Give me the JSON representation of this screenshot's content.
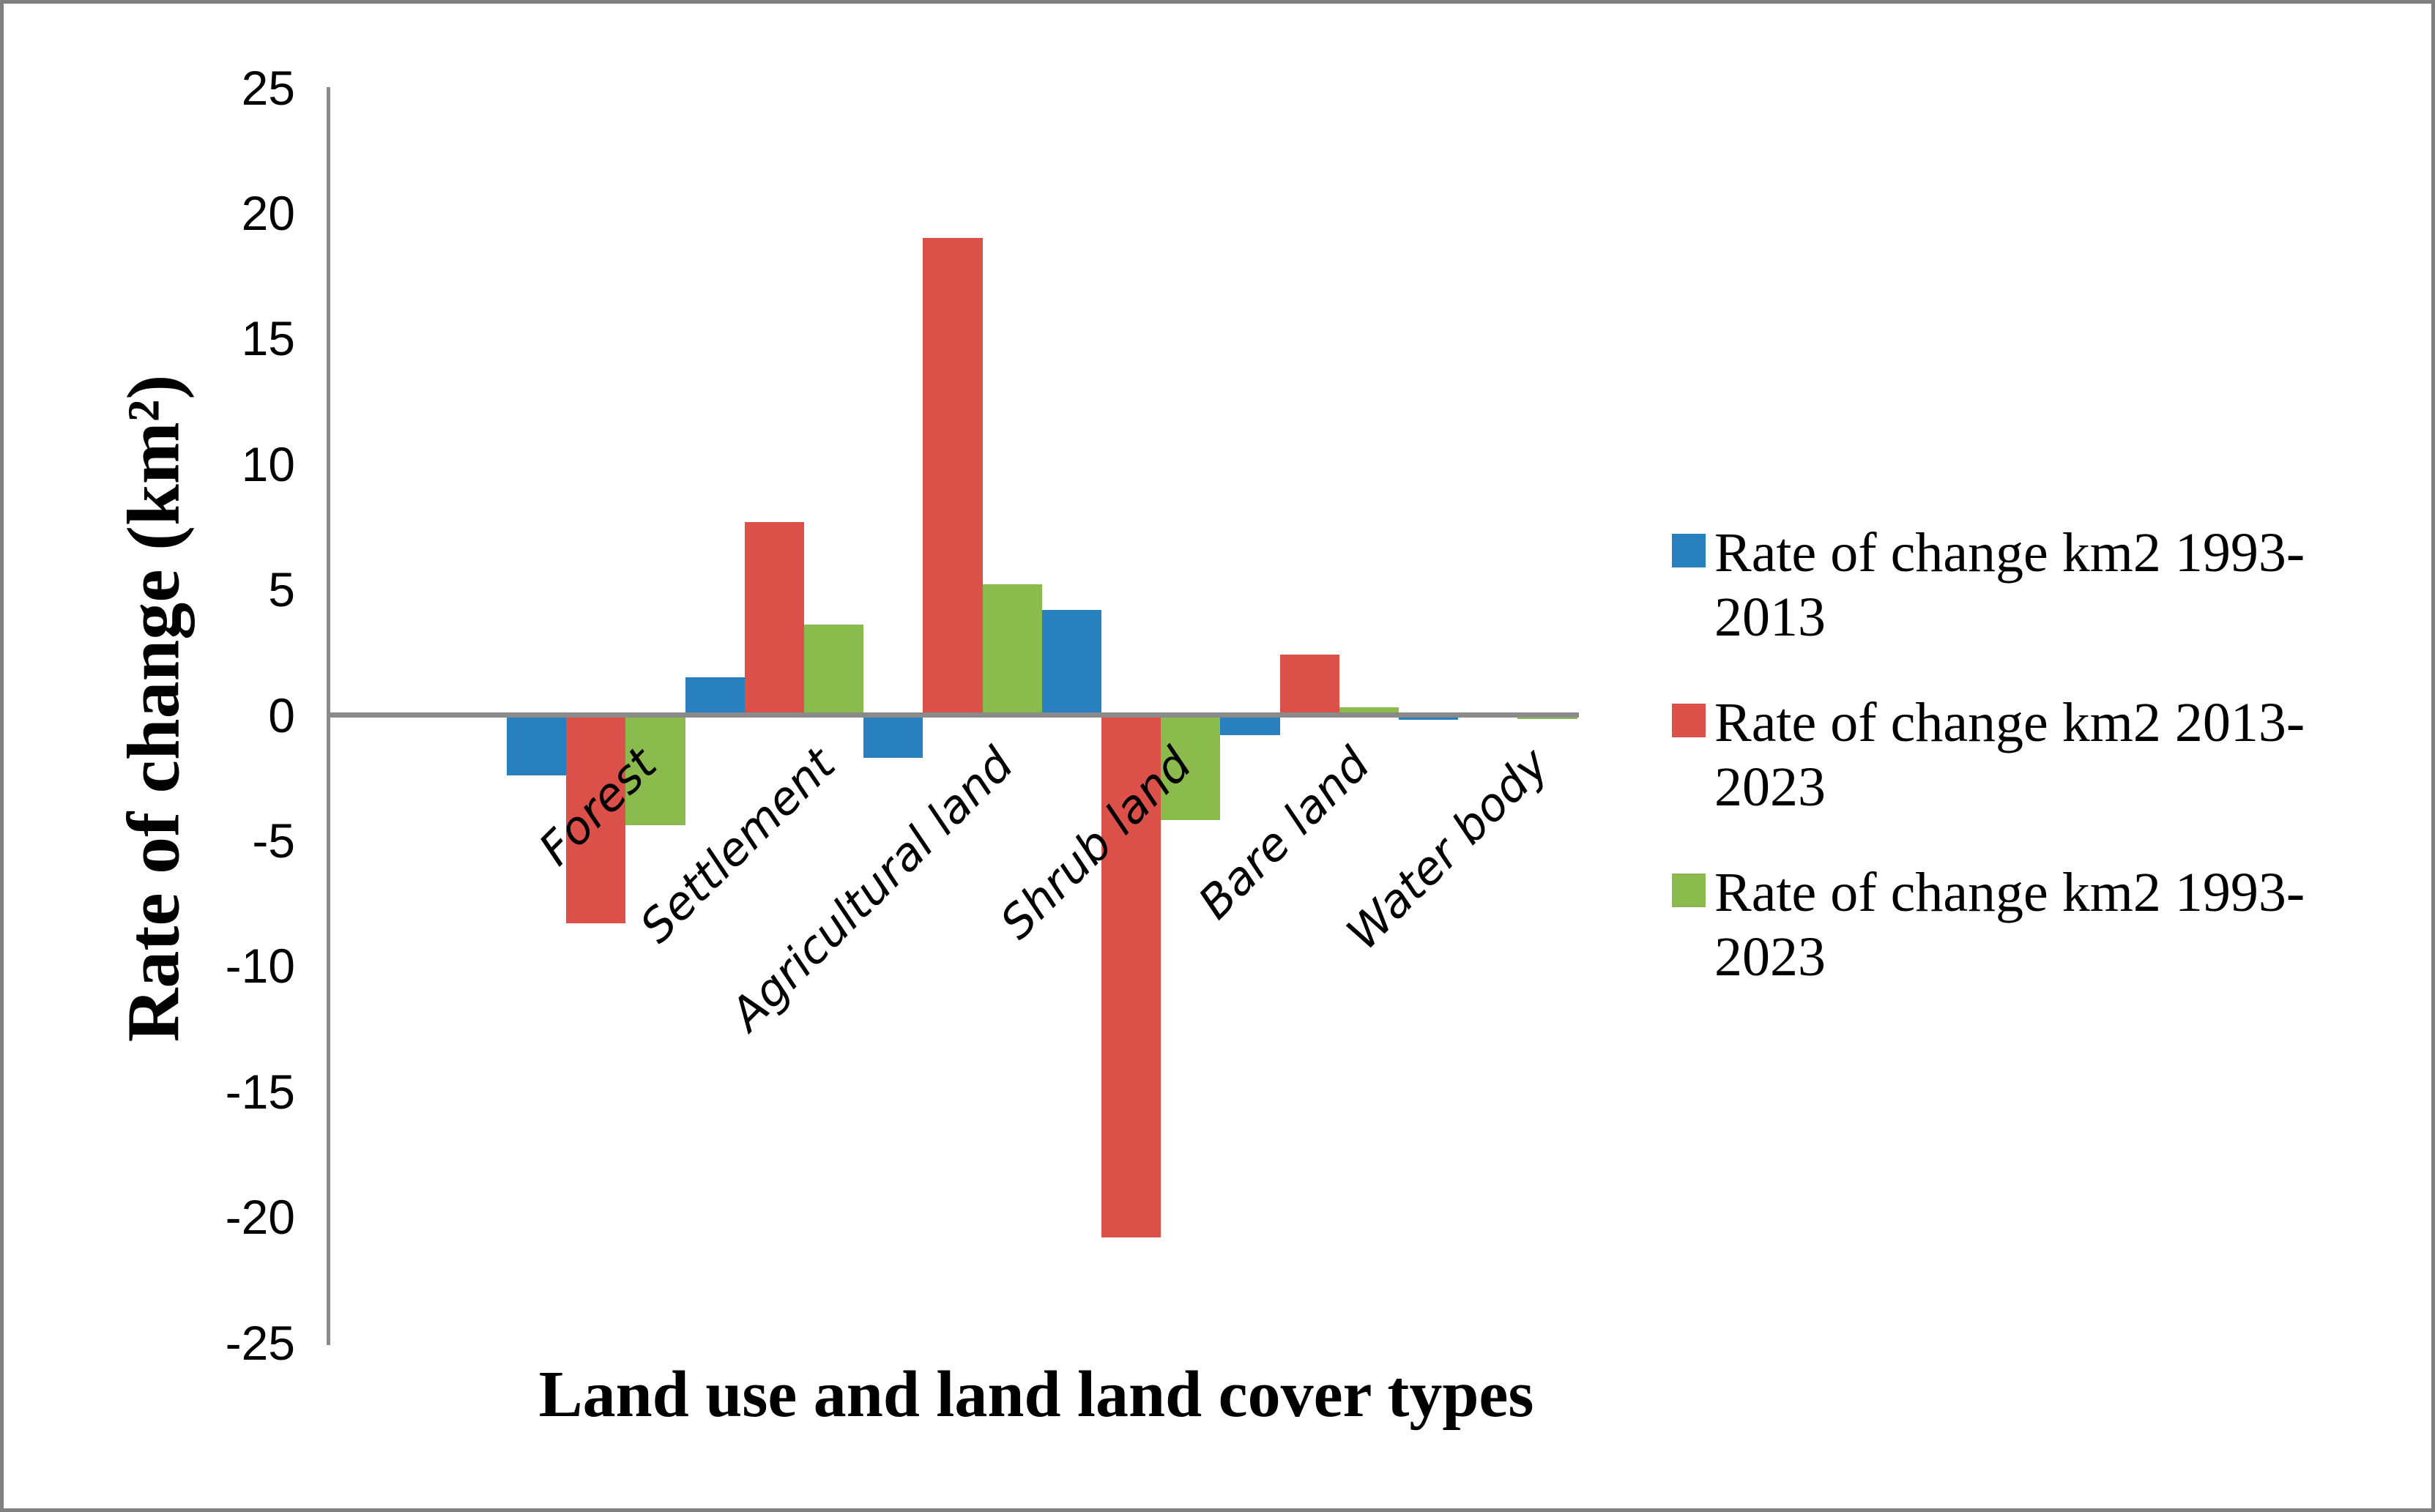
{
  "figure": {
    "y_axis_title": "Rate of change (km²)",
    "x_axis_title": "Land use and land land cover types"
  },
  "legend": {
    "position": "right",
    "entries": [
      {
        "series": "blue",
        "color": "#2980BE",
        "line1": "Rate of change km2 1993-",
        "line2": "2013"
      },
      {
        "series": "red",
        "color": "#DB5049",
        "line1": "Rate of change km2 2013-",
        "line2": "2023"
      },
      {
        "series": "green",
        "color": "#8CBB4D",
        "line1": "Rate of change km2 1993-",
        "line2": "2023"
      }
    ]
  },
  "chart_data": {
    "type": "bar",
    "title": "",
    "categories": [
      "Forest",
      "Settlement",
      "Agricultural land",
      "Shrub land",
      "Bare land",
      "Water body"
    ],
    "series": [
      {
        "name": "Rate of change km2 1993-2013",
        "key": "1993-2013",
        "color": "#2980BE",
        "values": [
          -2.4,
          1.5,
          -1.7,
          4.2,
          -0.8,
          -0.2
        ]
      },
      {
        "name": "Rate of change km2 2013-2023",
        "key": "2013-2023",
        "color": "#DB5049",
        "values": [
          -8.3,
          7.7,
          19.0,
          -20.8,
          2.4,
          0.0
        ]
      },
      {
        "name": "Rate of change km2 1993-2023",
        "key": "1993-2023",
        "color": "#8CBB4D",
        "values": [
          -4.4,
          3.6,
          5.2,
          -4.2,
          0.3,
          -0.15
        ]
      }
    ],
    "xlabel": "Land use and land land cover types",
    "ylabel": "Rate of change (km²)",
    "ylim": [
      -25,
      25
    ],
    "yticks": [
      25,
      20,
      15,
      10,
      5,
      0,
      -5,
      -10,
      -15,
      -20,
      -25
    ],
    "grid": false,
    "legend_position": "right",
    "axis_color": "#8a8a8a"
  }
}
